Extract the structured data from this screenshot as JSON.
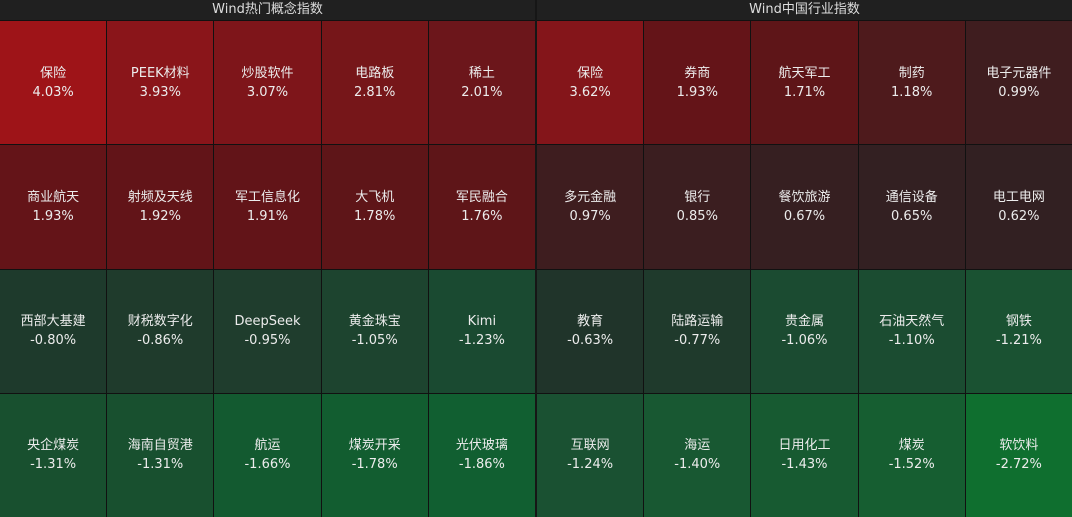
{
  "panels": [
    {
      "title": "Wind热门概念指数",
      "tiles": [
        {
          "name": "保险",
          "change": "4.03%",
          "color": "#9e1418"
        },
        {
          "name": "PEEK材料",
          "change": "3.93%",
          "color": "#8a151a"
        },
        {
          "name": "炒股软件",
          "change": "3.07%",
          "color": "#7e151a"
        },
        {
          "name": "电路板",
          "change": "2.81%",
          "color": "#761619"
        },
        {
          "name": "稀土",
          "change": "2.01%",
          "color": "#6c161b"
        },
        {
          "name": "商业航天",
          "change": "1.93%",
          "color": "#641418"
        },
        {
          "name": "射频及天线",
          "change": "1.92%",
          "color": "#621418"
        },
        {
          "name": "军工信息化",
          "change": "1.91%",
          "color": "#621418"
        },
        {
          "name": "大飞机",
          "change": "1.78%",
          "color": "#5e1518"
        },
        {
          "name": "军民融合",
          "change": "1.76%",
          "color": "#5e1518"
        },
        {
          "name": "西部大基建",
          "change": "-0.80%",
          "color": "#1e3a2c"
        },
        {
          "name": "财税数字化",
          "change": "-0.86%",
          "color": "#1f3b2c"
        },
        {
          "name": "DeepSeek",
          "change": "-0.95%",
          "color": "#1f3d2d"
        },
        {
          "name": "黄金珠宝",
          "change": "-1.05%",
          "color": "#1d442f"
        },
        {
          "name": "Kimi",
          "change": "-1.23%",
          "color": "#1a4a31"
        },
        {
          "name": "央企煤炭",
          "change": "-1.31%",
          "color": "#18502f"
        },
        {
          "name": "海南自贸港",
          "change": "-1.31%",
          "color": "#18502f"
        },
        {
          "name": "航运",
          "change": "-1.66%",
          "color": "#135a30"
        },
        {
          "name": "煤炭开采",
          "change": "-1.78%",
          "color": "#125d30"
        },
        {
          "name": "光伏玻璃",
          "change": "-1.86%",
          "color": "#115f31"
        }
      ]
    },
    {
      "title": "Wind中国行业指数",
      "tiles": [
        {
          "name": "保险",
          "change": "3.62%",
          "color": "#84151a"
        },
        {
          "name": "券商",
          "change": "1.93%",
          "color": "#641418"
        },
        {
          "name": "航天军工",
          "change": "1.71%",
          "color": "#5e1518"
        },
        {
          "name": "制药",
          "change": "1.18%",
          "color": "#4e1a1c"
        },
        {
          "name": "电子元器件",
          "change": "0.99%",
          "color": "#3f1d1f"
        },
        {
          "name": "多元金融",
          "change": "0.97%",
          "color": "#3e1d1f"
        },
        {
          "name": "银行",
          "change": "0.85%",
          "color": "#3b1e20"
        },
        {
          "name": "餐饮旅游",
          "change": "0.67%",
          "color": "#361f21"
        },
        {
          "name": "通信设备",
          "change": "0.65%",
          "color": "#332022"
        },
        {
          "name": "电工电网",
          "change": "0.62%",
          "color": "#322022"
        },
        {
          "name": "教育",
          "change": "-0.63%",
          "color": "#20342a"
        },
        {
          "name": "陆路运输",
          "change": "-0.77%",
          "color": "#1f3a2c"
        },
        {
          "name": "贵金属",
          "change": "-1.06%",
          "color": "#1b4b31"
        },
        {
          "name": "石油天然气",
          "change": "-1.10%",
          "color": "#1b4c31"
        },
        {
          "name": "钢铁",
          "change": "-1.21%",
          "color": "#1a5232"
        },
        {
          "name": "互联网",
          "change": "-1.24%",
          "color": "#1a5132"
        },
        {
          "name": "海运",
          "change": "-1.40%",
          "color": "#185832"
        },
        {
          "name": "日用化工",
          "change": "-1.43%",
          "color": "#175a31"
        },
        {
          "name": "煤炭",
          "change": "-1.52%",
          "color": "#165e31"
        },
        {
          "name": "软饮料",
          "change": "-2.72%",
          "color": "#0f6f2f"
        }
      ]
    }
  ]
}
